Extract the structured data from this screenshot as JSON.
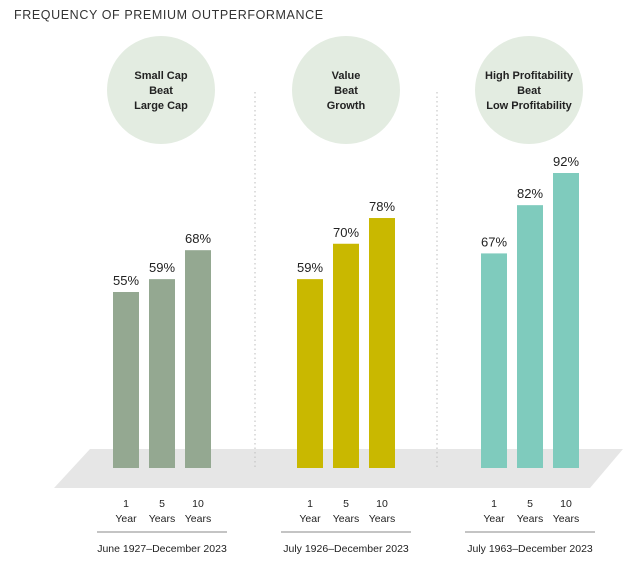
{
  "title": "FREQUENCY OF PREMIUM OUTPERFORMANCE",
  "chart_data": [
    {
      "type": "bar",
      "panel_lines": [
        "Small Cap",
        "Beat",
        "Large Cap"
      ],
      "categories": [
        [
          "1",
          "Year"
        ],
        [
          "5",
          "Years"
        ],
        [
          "10",
          "Years"
        ]
      ],
      "values": [
        55,
        59,
        68
      ],
      "labels": [
        "55%",
        "59%",
        "68%"
      ],
      "period": "June 1927–December 2023",
      "color": "#94a891"
    },
    {
      "type": "bar",
      "panel_lines": [
        "Value",
        "Beat",
        "Growth"
      ],
      "categories": [
        [
          "1",
          "Year"
        ],
        [
          "5",
          "Years"
        ],
        [
          "10",
          "Years"
        ]
      ],
      "values": [
        59,
        70,
        78
      ],
      "labels": [
        "59%",
        "70%",
        "78%"
      ],
      "period": "July 1926–December 2023",
      "color": "#c9b800"
    },
    {
      "type": "bar",
      "panel_lines": [
        "High Profitability",
        "Beat",
        "Low Profitability"
      ],
      "categories": [
        [
          "1",
          "Year"
        ],
        [
          "5",
          "Years"
        ],
        [
          "10",
          "Years"
        ]
      ],
      "values": [
        67,
        82,
        92
      ],
      "labels": [
        "67%",
        "82%",
        "92%"
      ],
      "period": "July 1963–December 2023",
      "color": "#7fcbbd"
    }
  ],
  "colors": {
    "circle": "#e3ece1",
    "floor": "#e6e6e6",
    "divider": "#bdbdbd"
  }
}
